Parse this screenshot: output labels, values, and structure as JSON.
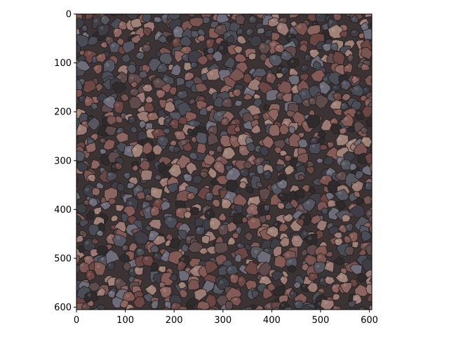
{
  "chart_data": {
    "type": "image",
    "title": "",
    "xlabel": "",
    "ylabel": "",
    "xlim": [
      0,
      605
    ],
    "ylim": [
      605,
      0
    ],
    "x_ticks": [
      0,
      100,
      200,
      300,
      400,
      500,
      600
    ],
    "y_ticks": [
      0,
      100,
      200,
      300,
      400,
      500,
      600
    ],
    "grid": false,
    "image_content": "mosaic of reddish-brown, grey and black volcanic lava rock gravel",
    "colors": {
      "background": "#3b3334",
      "stone_palette": [
        "#7a5451",
        "#8d6560",
        "#5f4a4c",
        "#4a4c56",
        "#6e6c78",
        "#9a7a72",
        "#2f2a2c",
        "#845a55",
        "#55565f",
        "#a08276",
        "#6b4643",
        "#3f3e46"
      ]
    }
  }
}
